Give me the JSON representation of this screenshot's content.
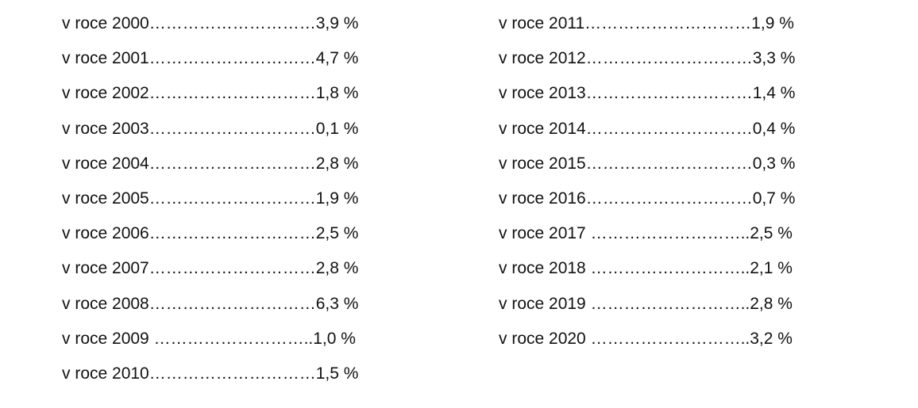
{
  "left_column": [
    "v roce 2000…………………………3,9 %",
    "v roce 2001…………………………4,7 %",
    "v roce 2002…………………………1,8 %",
    "v roce 2003…………………………0,1 %",
    "v roce 2004…………………………2,8 %",
    "v roce 2005…………………………1,9 %",
    "v roce 2006…………………………2,5 %",
    "v roce 2007…………………………2,8 %",
    "v roce 2008…………………………6,3 %",
    "v roce 2009 ………………………..1,0 %",
    "v roce 2010…………………………1,5 %"
  ],
  "right_column": [
    "v roce 2011…………………………1,9 %",
    "v roce 2012…………………………3,3 %",
    "v roce 2013…………………………1,4 %",
    "v roce 2014…………………………0,4 %",
    "v roce 2015…………………………0,3 %",
    "v roce 2016…………………………0,7 %",
    "v roce 2017 ………………………..2,5 %",
    "v roce 2018 ………………………..2,1 %",
    "v roce 2019 ………………………..2,8 %",
    "v roce 2020 ………………………..3,2 %"
  ]
}
